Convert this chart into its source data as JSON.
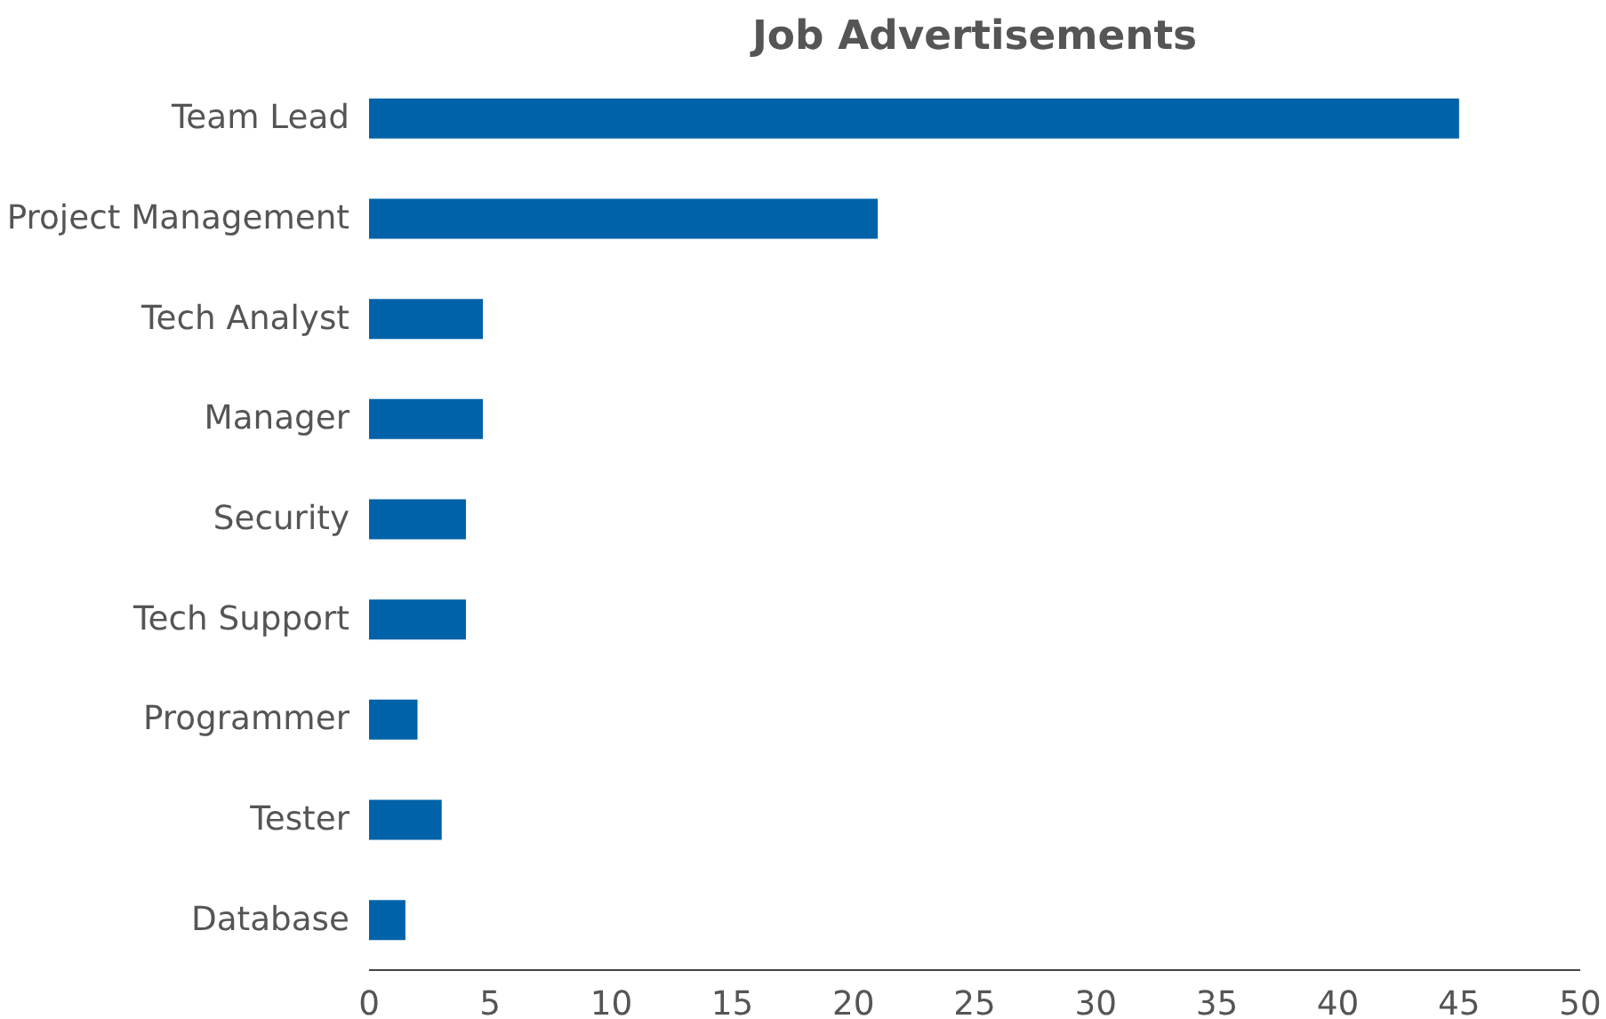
{
  "chart_data": {
    "type": "bar",
    "orientation": "horizontal",
    "title": "Job Advertisements",
    "categories": [
      "Team Lead",
      "Project Management",
      "Tech Analyst",
      "Manager",
      "Security",
      "Tech Support",
      "Programmer",
      "Tester",
      "Database"
    ],
    "values": [
      45,
      21,
      4.7,
      4.7,
      4,
      4,
      2,
      3,
      1.5
    ],
    "color": "#0062a8",
    "xlim": [
      0,
      50
    ],
    "xticks": [
      0,
      5,
      10,
      15,
      20,
      25,
      30,
      35,
      40,
      45,
      50
    ],
    "grid": false
  }
}
